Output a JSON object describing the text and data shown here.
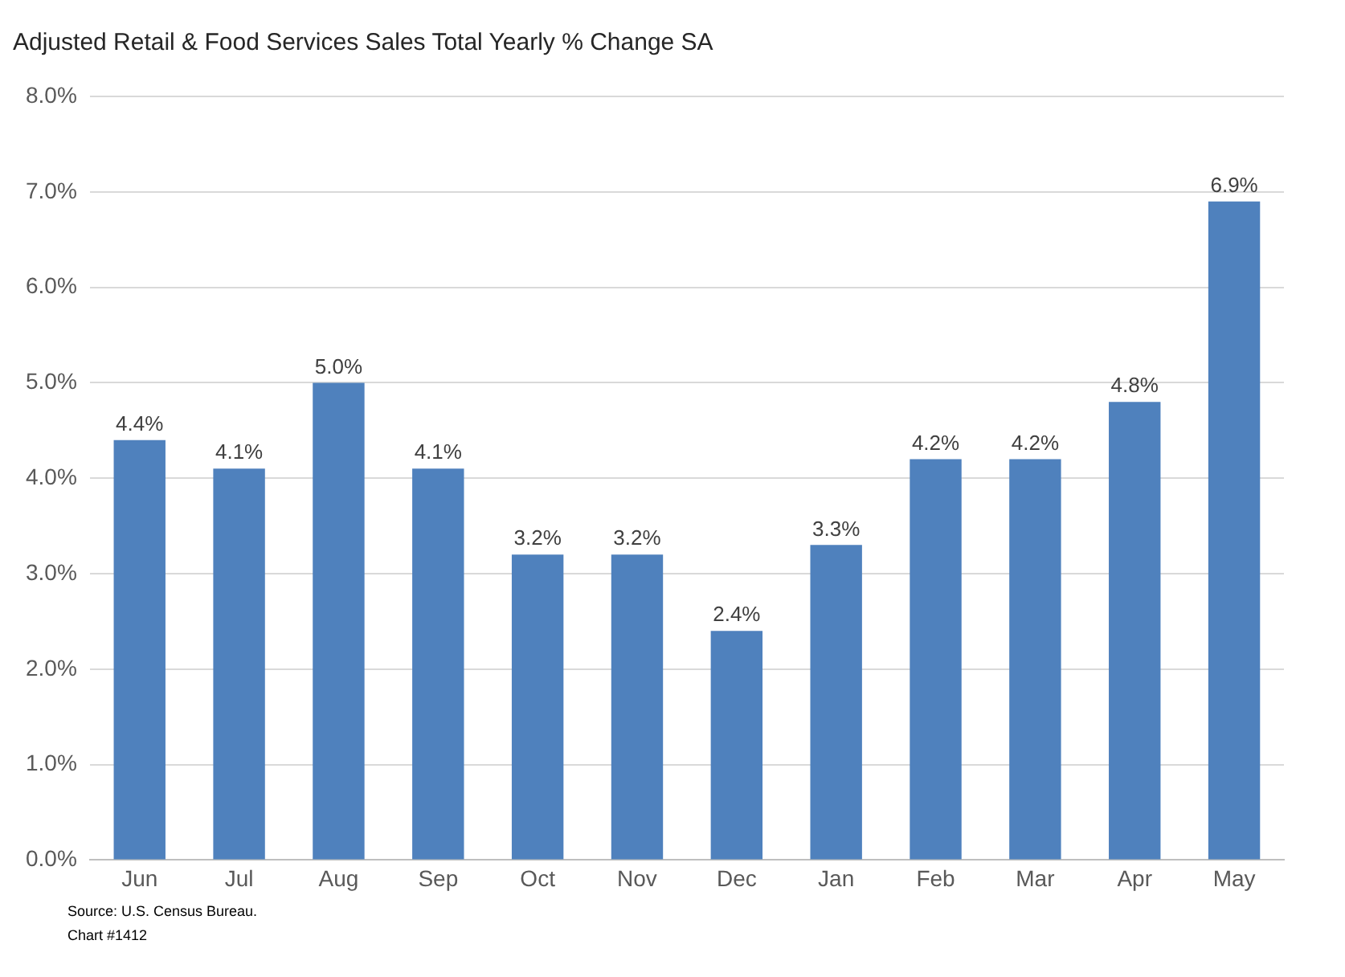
{
  "chart_data": {
    "type": "bar",
    "title": "Adjusted Retail & Food Services Sales Total Yearly % Change SA",
    "categories": [
      "Jun",
      "Jul",
      "Aug",
      "Sep",
      "Oct",
      "Nov",
      "Dec",
      "Jan",
      "Feb",
      "Mar",
      "Apr",
      "May"
    ],
    "values": [
      4.4,
      4.1,
      5.0,
      4.1,
      3.2,
      3.2,
      2.4,
      3.3,
      4.2,
      4.2,
      4.8,
      6.9
    ],
    "value_labels": [
      "4.4%",
      "4.1%",
      "5.0%",
      "4.1%",
      "3.2%",
      "3.2%",
      "2.4%",
      "3.3%",
      "4.2%",
      "4.2%",
      "4.8%",
      "6.9%"
    ],
    "color": "#4f81bd",
    "ylim": [
      0,
      8
    ],
    "yticks": [
      {
        "value": 0,
        "label": "0.0%"
      },
      {
        "value": 1,
        "label": "1.0%"
      },
      {
        "value": 2,
        "label": "2.0%"
      },
      {
        "value": 3,
        "label": "3.0%"
      },
      {
        "value": 4,
        "label": "4.0%"
      },
      {
        "value": 5,
        "label": "5.0%"
      },
      {
        "value": 6,
        "label": "6.0%"
      },
      {
        "value": 7,
        "label": "7.0%"
      },
      {
        "value": 8,
        "label": "8.0%"
      }
    ],
    "grid": "y",
    "annotations": [
      "Source: U.S. Census Bureau.",
      "Chart #1412"
    ]
  }
}
